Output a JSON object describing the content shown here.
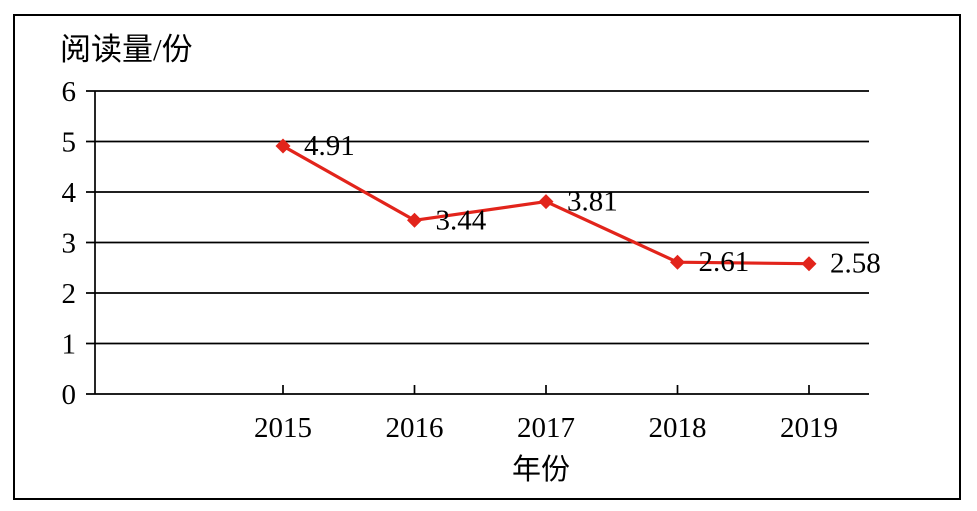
{
  "chart_data": {
    "type": "line",
    "title": "阅读量/份",
    "xlabel": "年份",
    "ylabel": "阅读量/份",
    "categories": [
      "2015",
      "2016",
      "2017",
      "2018",
      "2019"
    ],
    "series": [
      {
        "name": "阅读量",
        "values": [
          4.91,
          3.44,
          3.81,
          2.61,
          2.58
        ]
      }
    ],
    "data_labels": [
      "4.91",
      "3.44",
      "3.81",
      "2.61",
      "2.58"
    ],
    "y_ticks": [
      "0",
      "1",
      "2",
      "3",
      "4",
      "5",
      "6"
    ],
    "ylim": [
      0,
      6
    ],
    "grid": true,
    "legend_position": "none",
    "line_color": "#e2241b",
    "marker_shape": "diamond",
    "marker_color": "#e2241b",
    "axis_color": "#000000",
    "text_color": "#000000"
  }
}
